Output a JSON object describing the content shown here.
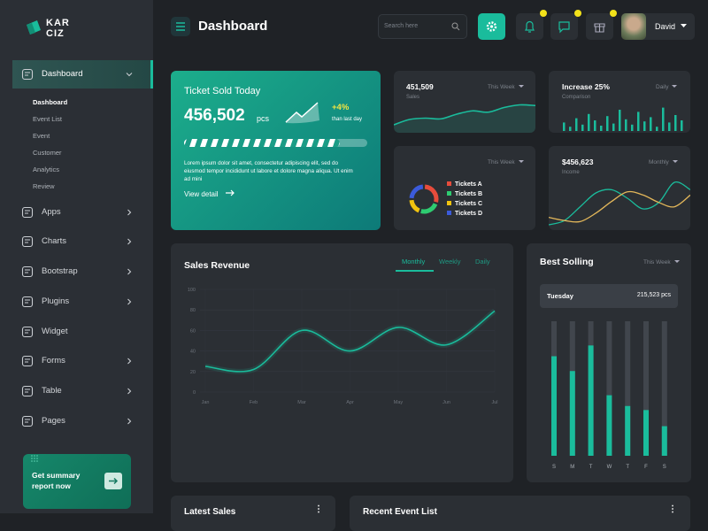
{
  "sidebar": {
    "logo": [
      "KAR",
      "CIZ"
    ],
    "menu": [
      {
        "label": "Dashboard",
        "expandable": true,
        "active": true,
        "submenu": [
          "Dashboard",
          "Event List",
          "Event",
          "Customer",
          "Analytics",
          "Review"
        ]
      },
      {
        "label": "Apps",
        "expandable": true
      },
      {
        "label": "Charts",
        "expandable": true
      },
      {
        "label": "Bootstrap",
        "expandable": true
      },
      {
        "label": "Plugins",
        "expandable": true
      },
      {
        "label": "Widget",
        "expandable": false
      },
      {
        "label": "Forms",
        "expandable": true
      },
      {
        "label": "Table",
        "expandable": true
      },
      {
        "label": "Pages",
        "expandable": true
      }
    ],
    "promo": [
      "Get summary",
      "report now"
    ]
  },
  "header": {
    "title": "Dashboard",
    "search_placeholder": "Search here",
    "user": "David"
  },
  "ticket_card": {
    "title": "Ticket Sold Today",
    "value": "456,502",
    "unit": "pcs",
    "change": "+4%",
    "change_note": "than last day",
    "progress": 85,
    "description": "Lorem ipsum dolor sit amet, consectetur adipiscing elit, sed do eiusmod tempor incididunt ut labore et dolore magna aliqua. Ut enim ad mini",
    "link": "View detail"
  },
  "sales_card": {
    "value": "451,509",
    "label": "Sales",
    "period": "This Week",
    "values": [
      12,
      20,
      22,
      21,
      28,
      33,
      31,
      38,
      42,
      41
    ],
    "ylim": [
      0,
      60
    ],
    "color": "#1abc9c"
  },
  "increase_card": {
    "title": "Increase 25%",
    "label": "Comparison",
    "period": "Daily",
    "values": [
      8,
      4,
      12,
      6,
      16,
      10,
      5,
      14,
      7,
      20,
      11,
      6,
      18,
      9,
      13,
      4,
      22,
      8,
      15,
      10
    ],
    "ylim": [
      0,
      25
    ],
    "color": "#1abc9c"
  },
  "tickets_card": {
    "period": "This Week",
    "series": [
      {
        "name": "Tickets A",
        "color": "#e74c3c",
        "value": 30
      },
      {
        "name": "Tickets B",
        "color": "#2ecc71",
        "value": 25
      },
      {
        "name": "Tickets C",
        "color": "#f1c40f",
        "value": 20
      },
      {
        "name": "Tickets D",
        "color": "#3b5bdb",
        "value": 25
      }
    ]
  },
  "income_card": {
    "value": "$456,623",
    "label": "Income",
    "period": "Monthly",
    "ylim": [
      0,
      50
    ],
    "series": [
      {
        "color": "#1abc9c",
        "values": [
          5,
          9,
          22,
          35,
          38,
          30,
          20,
          26,
          45,
          38
        ]
      },
      {
        "color": "#e3b75a",
        "values": [
          12,
          9,
          8,
          16,
          27,
          36,
          33,
          26,
          22,
          33
        ]
      }
    ]
  },
  "sales_revenue": {
    "title": "Sales Revenue",
    "tabs": [
      "Monthly",
      "Weekly",
      "Daily"
    ],
    "categories": [
      "Jan",
      "Feb",
      "Mar",
      "Apr",
      "May",
      "Jun",
      "Jul"
    ],
    "values": [
      25,
      22,
      60,
      40,
      63,
      46,
      79
    ],
    "ylim": [
      0,
      100
    ],
    "yticks": [
      0,
      20,
      40,
      60,
      80,
      100
    ],
    "grid": true,
    "color": "#1abc9c"
  },
  "best_selling": {
    "title": "Best Solling",
    "period": "This Week",
    "tooltip": {
      "day": "Tuesday",
      "value": "215,523 pcs"
    },
    "categories": [
      "S",
      "M",
      "T",
      "W",
      "T",
      "F",
      "S"
    ],
    "values": [
      74,
      63,
      82,
      45,
      37,
      34,
      22
    ],
    "ylim": [
      0,
      100
    ],
    "color": "#1abc9c"
  },
  "bottom": {
    "latest_sales": "Latest Sales",
    "recent_events": "Recent Event List"
  }
}
